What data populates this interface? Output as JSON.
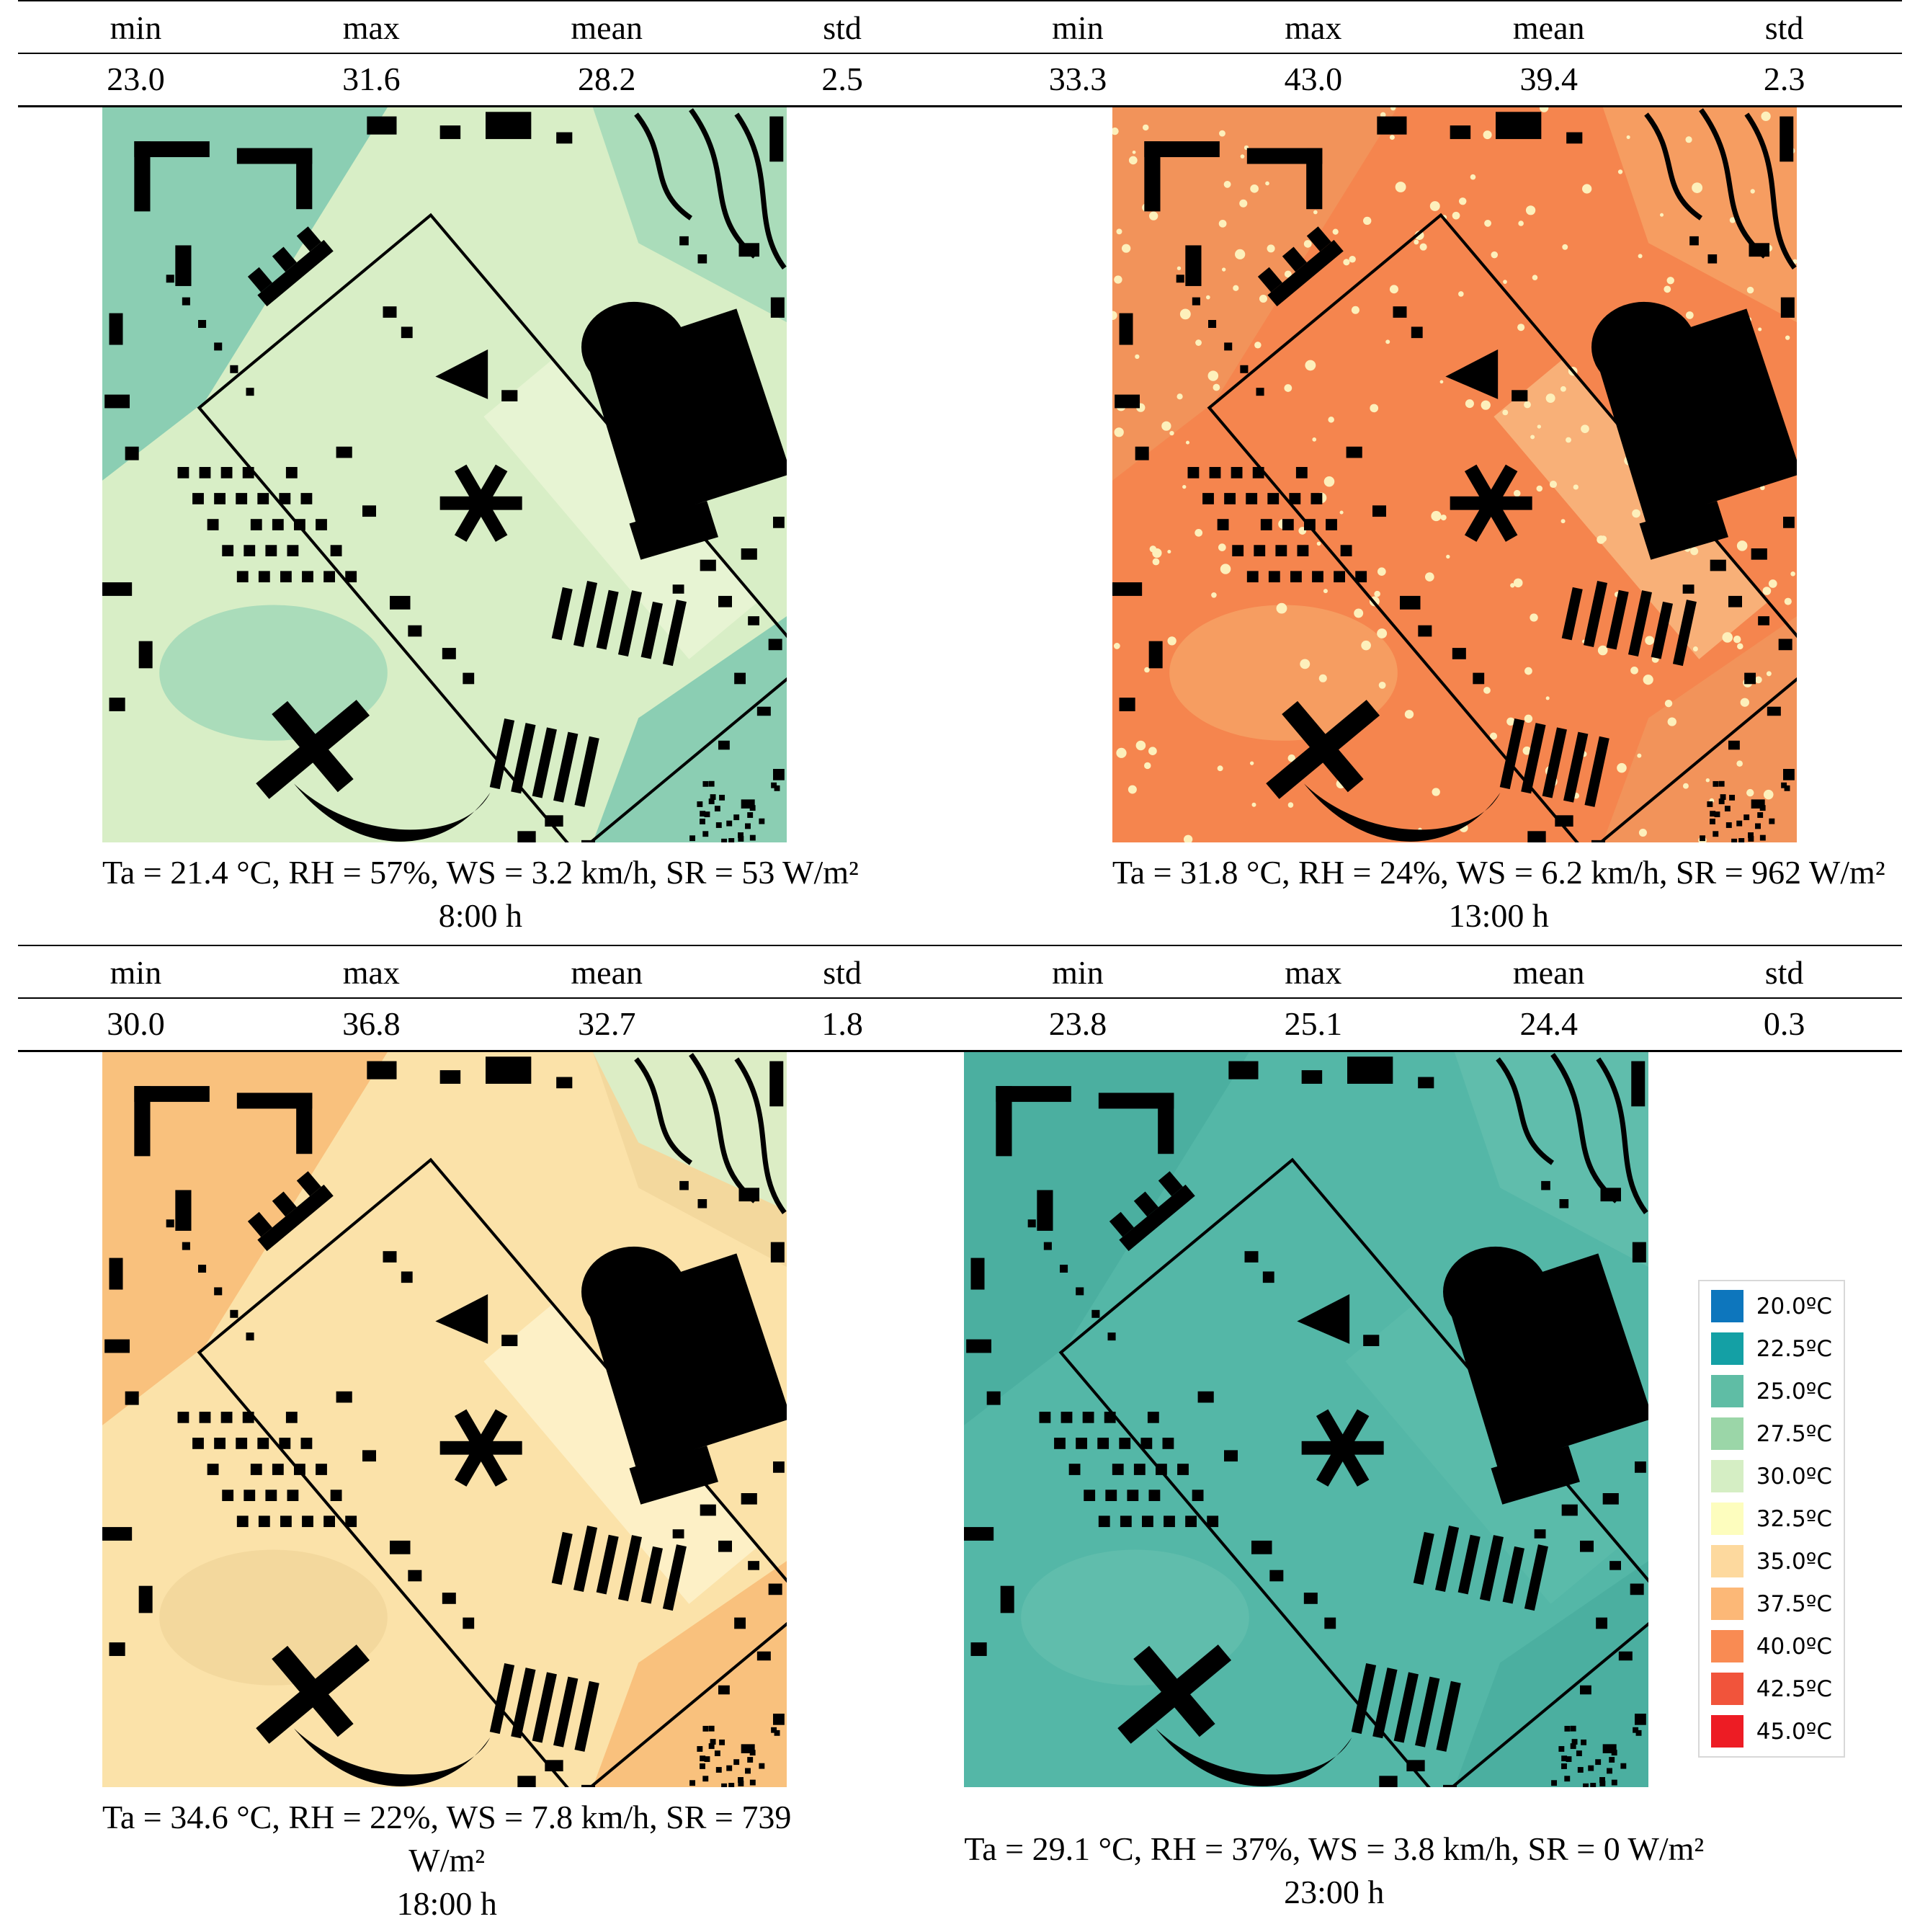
{
  "stats_header_labels": [
    "min",
    "max",
    "mean",
    "std"
  ],
  "panels": [
    {
      "time": "8:00 h",
      "stats": {
        "min": "23.0",
        "max": "31.6",
        "mean": "28.2",
        "std": "2.5"
      },
      "caption_lines": [
        "Ta = 21.4 °C, RH = 57%, WS = 3.2 km/h, SR = 53 W/m²",
        "8:00 h"
      ],
      "map_colors": {
        "base": "#d8eec6",
        "patch_a": "#8bceb3",
        "patch_b": "#aadcba",
        "strip": "#e7f4d3",
        "speckle": "",
        "corner": ""
      }
    },
    {
      "time": "13:00 h",
      "stats": {
        "min": "33.3",
        "max": "43.0",
        "mean": "39.4",
        "std": "2.3"
      },
      "caption_lines": [
        "Ta = 31.8 °C, RH = 24%, WS = 6.2 km/h, SR = 962 W/m²",
        "13:00 h"
      ],
      "map_colors": {
        "base": "#f5854e",
        "patch_a": "#f2935a",
        "patch_b": "#f69d61",
        "strip": "#f8b078",
        "speckle": "#fdf0bb",
        "corner": ""
      }
    },
    {
      "time": "18:00 h",
      "stats": {
        "min": "30.0",
        "max": "36.8",
        "mean": "32.7",
        "std": "1.8"
      },
      "caption_lines": [
        "Ta = 34.6 °C, RH = 22%, WS = 7.8 km/h, SR = 739",
        "W/m²",
        "18:00 h"
      ],
      "map_colors": {
        "base": "#fbe2a9",
        "patch_a": "#f9c17d",
        "patch_b": "#f3d89d",
        "strip": "#fdf0c6",
        "speckle": "",
        "corner": "#dcedc5"
      }
    },
    {
      "time": "23:00 h",
      "stats": {
        "min": "23.8",
        "max": "25.1",
        "mean": "24.4",
        "std": "0.3"
      },
      "caption_lines": [
        "Ta = 29.1 °C, RH = 37%, WS = 3.8 km/h, SR = 0 W/m²",
        "23:00 h"
      ],
      "map_colors": {
        "base": "#54b7a7",
        "patch_a": "#4bafa0",
        "patch_b": "#60bdac",
        "strip": "#5abbaa",
        "speckle": "",
        "corner": ""
      }
    }
  ],
  "legend": {
    "entries": [
      {
        "label": "20.0ºC",
        "color": "#0d76bd"
      },
      {
        "label": "22.5ºC",
        "color": "#14a0a5"
      },
      {
        "label": "25.0ºC",
        "color": "#5fbda5"
      },
      {
        "label": "27.5ºC",
        "color": "#9bd6a8"
      },
      {
        "label": "30.0ºC",
        "color": "#d5eec4"
      },
      {
        "label": "32.5ºC",
        "color": "#fdfdbe"
      },
      {
        "label": "35.0ºC",
        "color": "#fdd99e"
      },
      {
        "label": "37.5ºC",
        "color": "#fcb877"
      },
      {
        "label": "40.0ºC",
        "color": "#f98b53"
      },
      {
        "label": "42.5ºC",
        "color": "#f1543b"
      },
      {
        "label": "45.0ºC",
        "color": "#ed1c24"
      }
    ]
  }
}
